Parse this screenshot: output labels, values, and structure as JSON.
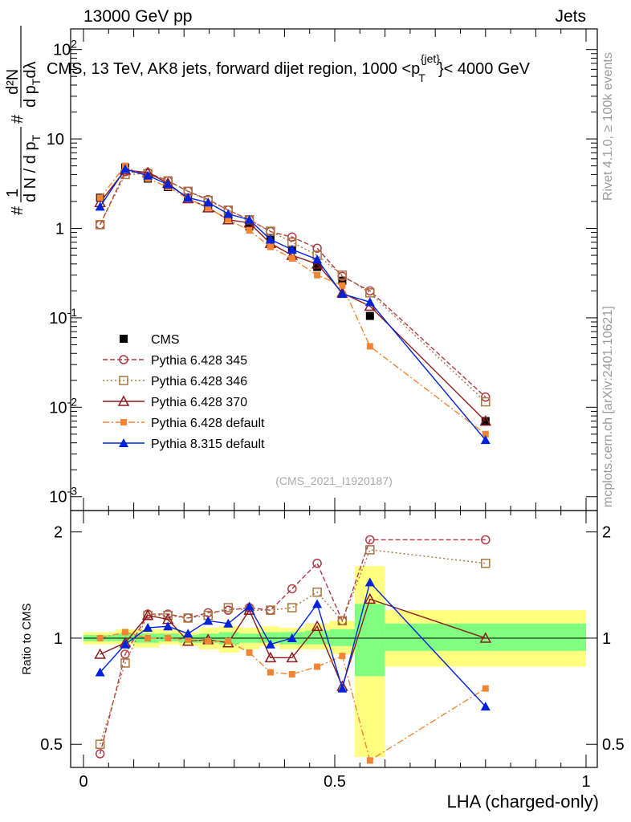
{
  "header": {
    "left": "13000 GeV pp",
    "right": "Jets",
    "plot_title": "CMS, 13 TeV, AK8 jets, forward dijet region, 1000 <p",
    "plot_title_sub": "T",
    "plot_title_sup": "{jet}",
    "plot_title_end": "}< 4000 GeV",
    "watermark": "(CMS_2021_I1920187)",
    "side_top": "Rivet 4.1.0, ≥ 100k events",
    "side_bottom": "mcplots.cern.ch [arXiv:2401.10621]"
  },
  "chart_data": [
    {
      "type": "scatter",
      "title": "CMS, 13 TeV, AK8 jets, forward dijet region, 1000 < pT{jet} < 4000 GeV",
      "xlabel": "LHA (charged-only)",
      "ylabel": "1/dN/dpT  d²N/dpT dλ",
      "ylabel_parts": [
        "#",
        "1",
        "d N / d p",
        "T",
        "#",
        "d²N",
        "d p",
        "T",
        "dλ"
      ],
      "yscale": "log",
      "xlim": [
        0,
        1
      ],
      "ylim": [
        0.0007,
        170
      ],
      "y_ticks": [
        {
          "v": 0.001,
          "mant": "10",
          "exp": "-3"
        },
        {
          "v": 0.01,
          "mant": "10",
          "exp": "-2"
        },
        {
          "v": 0.1,
          "mant": "10",
          "exp": "-1"
        },
        {
          "v": 1,
          "mant": "1",
          "exp": ""
        },
        {
          "v": 10,
          "mant": "10",
          "exp": ""
        },
        {
          "v": 100,
          "mant": "10",
          "exp": "2"
        }
      ],
      "x": [
        0.033,
        0.083,
        0.128,
        0.168,
        0.208,
        0.248,
        0.288,
        0.33,
        0.372,
        0.415,
        0.465,
        0.515,
        0.57,
        0.8
      ],
      "series": [
        {
          "name": "CMS",
          "color": "#000000",
          "marker": "filled-square",
          "line": "none",
          "values": [
            2.2,
            4.8,
            3.6,
            2.9,
            2.2,
            1.75,
            1.3,
            1.05,
            0.78,
            0.58,
            0.37,
            0.26,
            0.105,
            0.007
          ]
        },
        {
          "name": "Pythia 6.428 345",
          "color": "#b03a48",
          "marker": "open-circle",
          "line": "dashed",
          "values": [
            1.1,
            4.3,
            4.2,
            3.4,
            2.6,
            2.1,
            1.6,
            1.25,
            0.92,
            0.8,
            0.6,
            0.29,
            0.2,
            0.013
          ]
        },
        {
          "name": "Pythia 6.428 346",
          "color": "#a8763e",
          "marker": "open-square",
          "line": "dotted",
          "values": [
            1.1,
            4.0,
            4.1,
            3.4,
            2.6,
            2.05,
            1.6,
            1.25,
            0.93,
            0.7,
            0.5,
            0.3,
            0.19,
            0.0115
          ]
        },
        {
          "name": "Pythia 6.428 370",
          "color": "#8b1a1a",
          "marker": "open-triangle",
          "line": "solid",
          "values": [
            1.95,
            4.5,
            4.2,
            3.2,
            2.15,
            1.7,
            1.25,
            1.15,
            0.68,
            0.5,
            0.4,
            0.19,
            0.135,
            0.007
          ]
        },
        {
          "name": "Pythia 6.428 default",
          "color": "#f28533",
          "marker": "filled-small-square",
          "line": "dashdot",
          "values": [
            2.2,
            5.0,
            3.6,
            2.9,
            2.15,
            1.7,
            1.25,
            0.95,
            0.62,
            0.46,
            0.3,
            0.23,
            0.048,
            0.005
          ]
        },
        {
          "name": "Pythia 8.315 default",
          "color": "#0022dd",
          "marker": "filled-triangle",
          "line": "solid",
          "values": [
            1.75,
            4.6,
            3.9,
            3.1,
            2.2,
            1.95,
            1.45,
            1.25,
            0.75,
            0.58,
            0.45,
            0.185,
            0.15,
            0.0043
          ]
        }
      ]
    },
    {
      "type": "line",
      "xlabel": "LHA (charged-only)",
      "ylabel": "Ratio to CMS",
      "xlim": [
        0,
        1
      ],
      "ylim": [
        0.43,
        2.3
      ],
      "x_ticks": [
        {
          "v": 0,
          "label": "0"
        },
        {
          "v": 0.5,
          "label": "0.5"
        },
        {
          "v": 1,
          "label": "1"
        }
      ],
      "y_ticks": [
        {
          "v": 0.5,
          "label": "0.5"
        },
        {
          "v": 1,
          "label": "1"
        },
        {
          "v": 2,
          "label": "2"
        }
      ],
      "reference": 1,
      "band_edges": [
        0.0,
        0.065,
        0.1,
        0.15,
        0.19,
        0.23,
        0.27,
        0.31,
        0.35,
        0.39,
        0.44,
        0.49,
        0.54,
        0.6,
        1.0
      ],
      "band_outer": [
        [
          0.96,
          1.04
        ],
        [
          0.96,
          1.06
        ],
        [
          0.94,
          1.06
        ],
        [
          0.96,
          1.06
        ],
        [
          0.95,
          1.04
        ],
        [
          0.93,
          1.07
        ],
        [
          0.91,
          1.08
        ],
        [
          0.93,
          1.07
        ],
        [
          0.95,
          1.08
        ],
        [
          0.93,
          1.07
        ],
        [
          0.93,
          1.1
        ],
        [
          0.9,
          1.12
        ],
        [
          0.46,
          1.6
        ],
        [
          0.83,
          1.2
        ]
      ],
      "band_inner": [
        [
          0.98,
          1.02
        ],
        [
          0.98,
          1.03
        ],
        [
          0.97,
          1.03
        ],
        [
          0.98,
          1.03
        ],
        [
          0.97,
          1.02
        ],
        [
          0.97,
          1.03
        ],
        [
          0.96,
          1.04
        ],
        [
          0.97,
          1.03
        ],
        [
          0.97,
          1.04
        ],
        [
          0.96,
          1.04
        ],
        [
          0.96,
          1.05
        ],
        [
          0.95,
          1.06
        ],
        [
          0.78,
          1.25
        ],
        [
          0.92,
          1.1
        ]
      ],
      "band_colors": {
        "outer": "#ffff80",
        "inner": "#80ff80"
      },
      "series": [
        {
          "name": "Pythia 6.428 345",
          "values": [
            0.47,
            0.9,
            1.17,
            1.17,
            1.14,
            1.18,
            1.2,
            1.22,
            1.2,
            1.38,
            1.63,
            1.12,
            1.9,
            1.9
          ]
        },
        {
          "name": "Pythia 6.428 346",
          "values": [
            0.5,
            0.85,
            1.16,
            1.16,
            1.14,
            1.16,
            1.22,
            1.2,
            1.2,
            1.22,
            1.35,
            1.12,
            1.78,
            1.63
          ]
        },
        {
          "name": "Pythia 6.428 370",
          "values": [
            0.9,
            0.97,
            1.16,
            1.13,
            0.98,
            0.99,
            0.97,
            1.2,
            0.88,
            0.88,
            1.08,
            0.73,
            1.29,
            1.0
          ]
        },
        {
          "name": "Pythia 6.428 default",
          "values": [
            1.0,
            1.04,
            1.0,
            1.0,
            0.99,
            0.98,
            0.98,
            0.91,
            0.8,
            0.79,
            0.83,
            0.89,
            0.45,
            0.72
          ]
        },
        {
          "name": "Pythia 8.315 default",
          "values": [
            0.8,
            0.96,
            1.07,
            1.08,
            1.03,
            1.12,
            1.1,
            1.23,
            0.96,
            1.0,
            1.25,
            0.72,
            1.44,
            0.64
          ]
        }
      ]
    }
  ]
}
